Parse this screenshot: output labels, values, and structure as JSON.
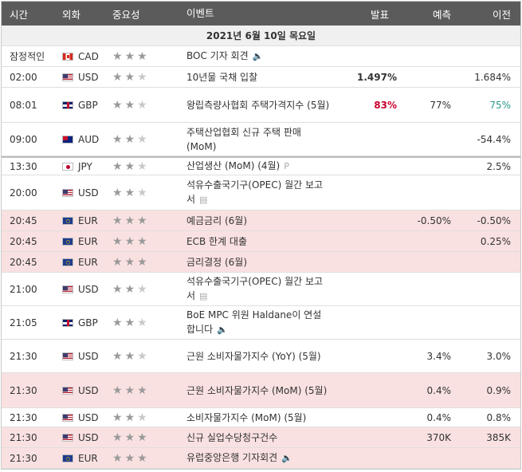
{
  "header": {
    "time": "시간",
    "currency": "외화",
    "importance": "중요성",
    "event": "이벤트",
    "actual": "발표",
    "forecast": "예측",
    "previous": "이전"
  },
  "date_label": "2021년 6월 10일 목요일",
  "rows": [
    {
      "time": "잠정적인",
      "flag": "ca",
      "currency": "CAD",
      "stars": 3,
      "event": "BOC 기자 회견",
      "icon": "speaker-icon",
      "icon_glyph": "🔈",
      "actual": "",
      "forecast": "",
      "previous": ""
    },
    {
      "time": "02:00",
      "flag": "us",
      "currency": "USD",
      "stars": 2,
      "event": "10년물 국채 입찰",
      "actual": "1.497%",
      "forecast": "",
      "previous": "1.684%"
    },
    {
      "time": "08:01",
      "flag": "gb",
      "currency": "GBP",
      "stars": 2,
      "event": "왕립측량사협회 주택가격지수 (5월)",
      "actual": "83%",
      "forecast": "77%",
      "previous": "75%"
    },
    {
      "time": "09:00",
      "flag": "au",
      "currency": "AUD",
      "stars": 2,
      "event": "주택산업협회 신규 주택 판매 (MoM)",
      "actual": "",
      "forecast": "",
      "previous": "-54.4%"
    },
    {
      "time": "13:30",
      "flag": "jp",
      "currency": "JPY",
      "stars": 2,
      "event": "산업생산 (MoM) (4월)",
      "icon": "preliminary-icon",
      "icon_glyph": "P",
      "actual": "",
      "forecast": "",
      "previous": "2.5%"
    },
    {
      "time": "20:00",
      "flag": "us",
      "currency": "USD",
      "stars": 2,
      "event": "석유수출국기구(OPEC) 월간 보고서",
      "icon": "report-icon",
      "icon_glyph": "▤",
      "actual": "",
      "forecast": "",
      "previous": ""
    },
    {
      "time": "20:45",
      "flag": "eu",
      "currency": "EUR",
      "stars": 3,
      "event": "예금금리 (6월)",
      "actual": "",
      "forecast": "-0.50%",
      "previous": "-0.50%"
    },
    {
      "time": "20:45",
      "flag": "eu",
      "currency": "EUR",
      "stars": 3,
      "event": "ECB 한계 대출",
      "actual": "",
      "forecast": "",
      "previous": "0.25%"
    },
    {
      "time": "20:45",
      "flag": "eu",
      "currency": "EUR",
      "stars": 3,
      "event": "금리결정 (6월)",
      "actual": "",
      "forecast": "",
      "previous": ""
    },
    {
      "time": "21:00",
      "flag": "us",
      "currency": "USD",
      "stars": 2,
      "event": "석유수출국기구(OPEC) 월간 보고서",
      "icon": "report-icon",
      "icon_glyph": "▤",
      "actual": "",
      "forecast": "",
      "previous": ""
    },
    {
      "time": "21:05",
      "flag": "gb",
      "currency": "GBP",
      "stars": 2,
      "event": "BoE MPC 위원 Haldane이 연설합니다",
      "icon": "speaker-icon",
      "icon_glyph": "🔈",
      "actual": "",
      "forecast": "",
      "previous": ""
    },
    {
      "time": "21:30",
      "flag": "us",
      "currency": "USD",
      "stars": 2,
      "event": "근원 소비자물가지수 (YoY) (5월)",
      "actual": "",
      "forecast": "3.4%",
      "previous": "3.0%"
    },
    {
      "time": "21:30",
      "flag": "us",
      "currency": "USD",
      "stars": 3,
      "event": "근원 소비자물가지수 (MoM) (5월)",
      "actual": "",
      "forecast": "0.4%",
      "previous": "0.9%"
    },
    {
      "time": "21:30",
      "flag": "us",
      "currency": "USD",
      "stars": 2,
      "event": "소비자물가지수 (MoM) (5월)",
      "actual": "",
      "forecast": "0.4%",
      "previous": "0.8%"
    },
    {
      "time": "21:30",
      "flag": "us",
      "currency": "USD",
      "stars": 3,
      "event": "신규 실업수당청구건수",
      "actual": "",
      "forecast": "370K",
      "previous": "385K"
    },
    {
      "time": "21:30",
      "flag": "eu",
      "currency": "EUR",
      "stars": 3,
      "event": "유럽중앙은행 기자회견",
      "icon": "speaker-icon",
      "icon_glyph": "🔈",
      "actual": "",
      "forecast": "",
      "previous": ""
    }
  ],
  "colors": {
    "header_bg": "#5b5b5b",
    "highlight_row": "#fae1e1",
    "actual_positive": "#c9002f",
    "previous_revised": "#2b9a8c"
  }
}
